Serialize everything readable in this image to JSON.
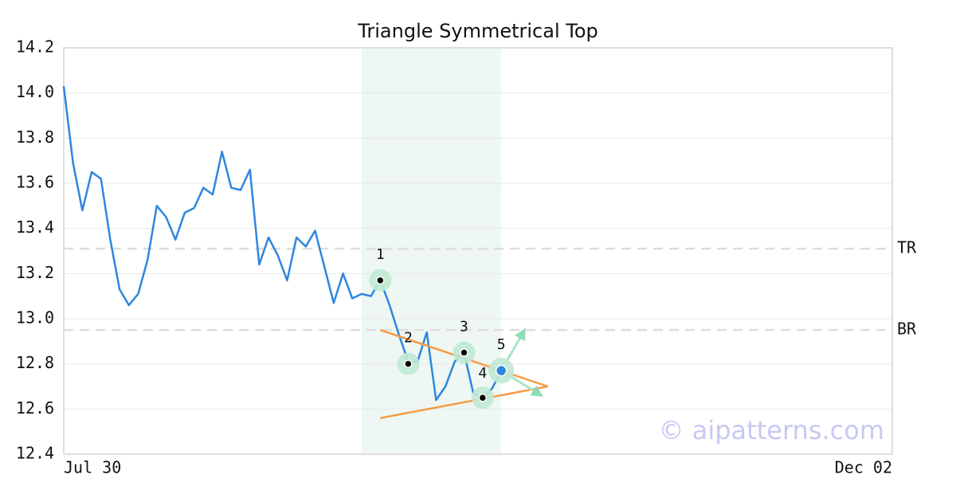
{
  "chart_data": {
    "type": "line",
    "title": "Triangle Symmetrical Top",
    "watermark": "© aipatterns.com",
    "xlim": [
      0,
      89
    ],
    "xticks": [
      {
        "value": 0,
        "label": "Jul 30"
      },
      {
        "value": 89,
        "label": "Dec 02"
      }
    ],
    "ylim": [
      12.4,
      14.2
    ],
    "yticks": [
      12.4,
      12.6,
      12.8,
      {
        "value": 13.0,
        "label": "13.0"
      },
      13.2,
      13.4,
      13.6,
      13.8,
      {
        "value": 14.0,
        "label": "14.0"
      },
      14.2
    ],
    "grid": true,
    "series": [
      {
        "color": "#2e86de",
        "values": [
          14.03,
          13.69,
          13.48,
          13.65,
          13.62,
          13.35,
          13.13,
          13.06,
          13.11,
          13.26,
          13.5,
          13.45,
          13.35,
          13.47,
          13.49,
          13.58,
          13.55,
          13.74,
          13.58,
          13.57,
          13.66,
          13.24,
          13.36,
          13.28,
          13.17,
          13.36,
          13.32,
          13.39,
          13.23,
          13.07,
          13.2,
          13.09,
          13.11,
          13.1,
          13.17,
          13.06,
          12.93,
          12.81,
          12.81,
          12.94,
          12.64,
          12.7,
          12.81,
          12.85,
          12.67,
          12.65,
          12.69,
          12.77
        ]
      }
    ],
    "highlight_x": [
      32,
      47
    ],
    "levels": [
      {
        "label": "TR",
        "value": 13.31
      },
      {
        "label": "BR",
        "value": 12.95
      }
    ],
    "pattern_points": [
      {
        "label": "1",
        "x": 34,
        "value": 13.17
      },
      {
        "label": "2",
        "x": 37,
        "value": 12.8
      },
      {
        "label": "3",
        "x": 43,
        "value": 12.85
      },
      {
        "label": "4",
        "x": 45,
        "value": 12.65
      },
      {
        "label": "5",
        "x": 47,
        "value": 12.77
      }
    ],
    "trend_lines": [
      {
        "x": [
          34,
          52
        ],
        "values": [
          12.95,
          12.7
        ]
      },
      {
        "x": [
          34,
          52
        ],
        "values": [
          12.56,
          12.7
        ]
      }
    ],
    "projections": [
      {
        "x": [
          47,
          49.5
        ],
        "values": [
          12.77,
          12.95
        ]
      },
      {
        "x": [
          47,
          51.3
        ],
        "values": [
          12.77,
          12.66
        ]
      }
    ]
  }
}
